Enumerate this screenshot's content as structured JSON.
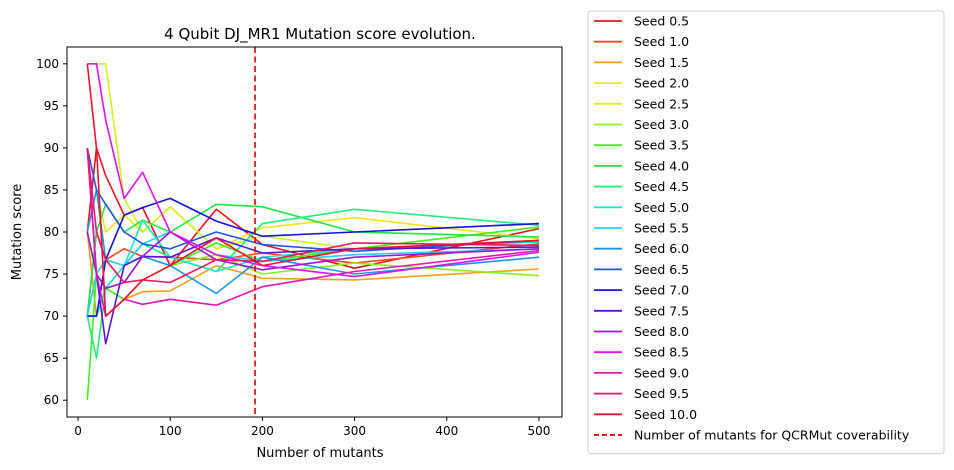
{
  "chart_data": {
    "type": "line",
    "title": "4 Qubit DJ_MR1 Mutation score evolution.",
    "xlabel": "Number of mutants",
    "ylabel": "Mutation score",
    "xlim": [
      -12,
      525
    ],
    "ylim": [
      58,
      102
    ],
    "xticks": [
      0,
      100,
      200,
      300,
      400,
      500
    ],
    "yticks": [
      60,
      65,
      70,
      75,
      80,
      85,
      90,
      95,
      100
    ],
    "grid": false,
    "legend_position": "outside-right",
    "x": [
      10,
      20,
      30,
      50,
      70,
      100,
      150,
      200,
      300,
      500
    ],
    "series": [
      {
        "name": "Seed 0.5",
        "color": "#e6141e",
        "values": [
          80,
          90,
          86.7,
          82,
          82.9,
          76,
          82.7,
          78.5,
          75.7,
          80.4
        ]
      },
      {
        "name": "Seed 1.0",
        "color": "#f04a1a",
        "values": [
          70,
          80,
          76.7,
          78,
          77.1,
          77,
          76.7,
          77.5,
          76.3,
          78.6
        ]
      },
      {
        "name": "Seed 1.5",
        "color": "#f5a01a",
        "values": [
          80,
          70,
          73.3,
          72,
          72.9,
          73,
          76,
          74.5,
          74.3,
          75.6
        ]
      },
      {
        "name": "Seed 2.0",
        "color": "#f7e21c",
        "values": [
          80,
          85,
          80,
          82,
          80,
          83,
          78,
          80.5,
          81.7,
          79.2
        ]
      },
      {
        "name": "Seed 2.5",
        "color": "#cdf21e",
        "values": [
          100,
          100,
          100,
          84,
          80,
          83,
          78,
          79.5,
          78,
          79
        ]
      },
      {
        "name": "Seed 3.0",
        "color": "#84f21e",
        "values": [
          80,
          75,
          76.7,
          76,
          77.1,
          76,
          77.3,
          75,
          76.3,
          74.8
        ]
      },
      {
        "name": "Seed 3.5",
        "color": "#3ef01e",
        "values": [
          60,
          75,
          73.3,
          72,
          74.3,
          76,
          78.7,
          76.5,
          78,
          80.6
        ]
      },
      {
        "name": "Seed 4.0",
        "color": "#1ee645",
        "values": [
          70,
          80,
          83.3,
          80,
          81.4,
          80,
          83.3,
          83,
          80,
          79.4
        ]
      },
      {
        "name": "Seed 4.5",
        "color": "#1ef07a",
        "values": [
          70,
          65,
          73.3,
          76,
          78.6,
          77,
          75.3,
          81,
          82.7,
          80.8
        ]
      },
      {
        "name": "Seed 5.0",
        "color": "#1ee6c8",
        "values": [
          70,
          70,
          73.3,
          76,
          81.4,
          77,
          75.3,
          77,
          78,
          78.8
        ]
      },
      {
        "name": "Seed 5.5",
        "color": "#1ed2f0",
        "values": [
          70,
          75,
          76.7,
          76,
          78.6,
          80,
          77.3,
          76.5,
          77.3,
          78
        ]
      },
      {
        "name": "Seed 6.0",
        "color": "#1e96e6",
        "values": [
          80,
          85,
          76.7,
          74,
          77.1,
          76,
          72.7,
          77,
          75,
          77
        ]
      },
      {
        "name": "Seed 6.5",
        "color": "#1e5ae6",
        "values": [
          90,
          85,
          83.3,
          80,
          78.6,
          78,
          80,
          78.5,
          77.7,
          79
        ]
      },
      {
        "name": "Seed 7.0",
        "color": "#1414d2",
        "values": [
          70,
          70,
          76.7,
          82,
          82.9,
          84,
          81.3,
          79.5,
          80,
          81
        ]
      },
      {
        "name": "Seed 7.5",
        "color": "#5a14dc",
        "values": [
          90,
          75,
          66.7,
          76,
          77.1,
          77,
          79.3,
          77.5,
          78,
          78.2
        ]
      },
      {
        "name": "Seed 8.0",
        "color": "#a014dc",
        "values": [
          80,
          75,
          73.3,
          74,
          77.1,
          80,
          76.7,
          75.5,
          77,
          78
        ]
      },
      {
        "name": "Seed 8.5",
        "color": "#dc14f0",
        "values": [
          100,
          100,
          93.3,
          84,
          87.1,
          80,
          77.3,
          76,
          74.7,
          77.6
        ]
      },
      {
        "name": "Seed 9.0",
        "color": "#e614b4",
        "values": [
          90,
          75,
          70,
          72,
          71.4,
          72,
          71.3,
          73.5,
          75.3,
          77.8
        ]
      },
      {
        "name": "Seed 9.5",
        "color": "#f01464",
        "values": [
          90,
          80,
          76.7,
          74,
          74.3,
          74,
          76.7,
          76.5,
          78.7,
          78.4
        ]
      },
      {
        "name": "Seed 10.0",
        "color": "#e61432",
        "values": [
          100,
          90,
          70,
          72,
          74.3,
          76,
          79.3,
          76,
          78,
          79
        ]
      }
    ],
    "annotations": [
      {
        "type": "vline",
        "x": 192,
        "color": "#e60000",
        "style": "dashed",
        "label": "Number of mutants for QCRMut coverability"
      }
    ]
  }
}
